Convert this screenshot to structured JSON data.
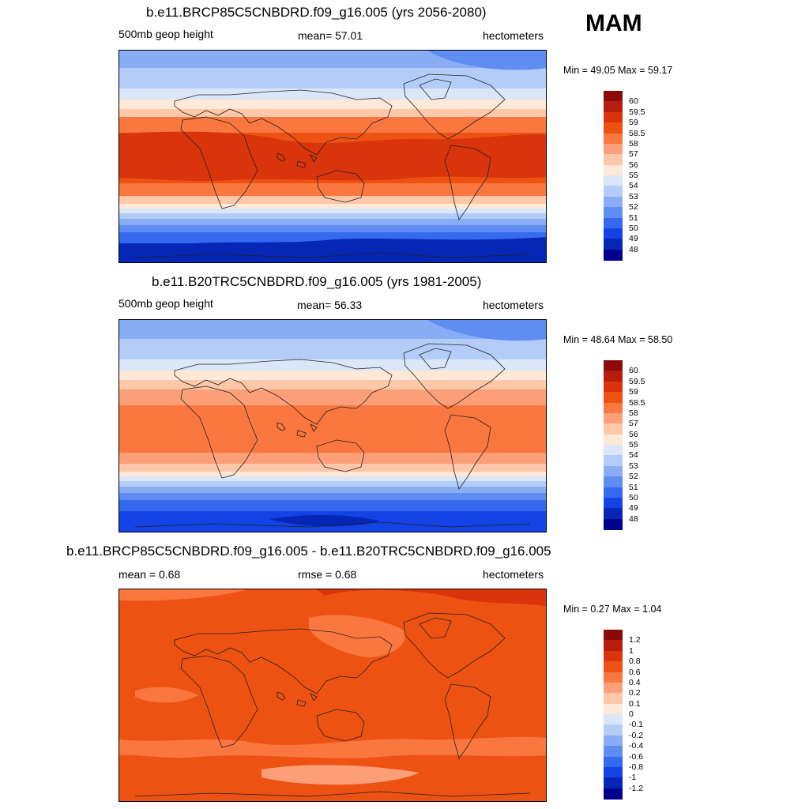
{
  "season": "MAM",
  "panels": [
    {
      "title": "b.e11.BRCP85C5CNBDRD.f09_g16.005 (yrs 2056-2080)",
      "left_label": "500mb geop height",
      "center_label": "mean=  57.01",
      "units": "hectometers",
      "minmax": "Min =  49.05 Max =  59.17",
      "legend_labels": [
        "60",
        "59.5",
        "59",
        "58.5",
        "58",
        "57",
        "56",
        "55",
        "54",
        "53",
        "52",
        "51",
        "50",
        "49",
        "48"
      ],
      "legend_colors": [
        "#8b0a0a",
        "#b81c0c",
        "#d9340c",
        "#ee5213",
        "#fa7740",
        "#fda07a",
        "#fdc7a9",
        "#fee8d8",
        "#dbe6f8",
        "#b4cdf8",
        "#8aaef6",
        "#5f8df2",
        "#356aee",
        "#1443e5",
        "#0626b5",
        "#00008c"
      ]
    },
    {
      "title": "b.e11.B20TRC5CNBDRD.f09_g16.005 (yrs 1981-2005)",
      "left_label": "500mb geop height",
      "center_label": "mean=  56.33",
      "units": "hectometers",
      "minmax": "Min =  48.64 Max =  58.50",
      "legend_labels": [
        "60",
        "59.5",
        "59",
        "58.5",
        "58",
        "57",
        "56",
        "55",
        "54",
        "53",
        "52",
        "51",
        "50",
        "49",
        "48"
      ],
      "legend_colors": [
        "#8b0a0a",
        "#b81c0c",
        "#d9340c",
        "#ee5213",
        "#fa7740",
        "#fda07a",
        "#fdc7a9",
        "#fee8d8",
        "#dbe6f8",
        "#b4cdf8",
        "#8aaef6",
        "#5f8df2",
        "#356aee",
        "#1443e5",
        "#0626b5",
        "#00008c"
      ]
    },
    {
      "title": "b.e11.BRCP85C5CNBDRD.f09_g16.005 - b.e11.B20TRC5CNBDRD.f09_g16.005",
      "left_label": "mean =   0.68",
      "center_label": "rmse =   0.68",
      "units": "hectometers",
      "minmax": "Min =   0.27 Max =   1.04",
      "legend_labels": [
        "1.2",
        "1",
        "0.8",
        "0.6",
        "0.4",
        "0.2",
        "0.1",
        "0",
        "-0.1",
        "-0.2",
        "-0.4",
        "-0.6",
        "-0.8",
        "-1",
        "-1.2"
      ],
      "legend_colors": [
        "#8b0a0a",
        "#b81c0c",
        "#d9340c",
        "#ee5213",
        "#fa7740",
        "#fda07a",
        "#fdc7a9",
        "#fee8d8",
        "#dbe6f8",
        "#b4cdf8",
        "#8aaef6",
        "#5f8df2",
        "#356aee",
        "#1443e5",
        "#0626b5",
        "#00008c"
      ]
    }
  ]
}
